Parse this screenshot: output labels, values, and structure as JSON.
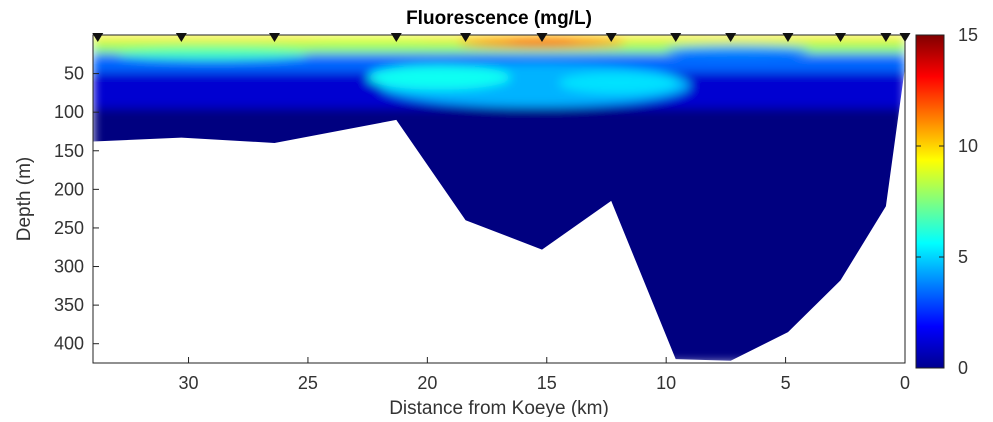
{
  "chart_data": {
    "type": "heatmap",
    "title": "Fluorescence (mg/L)",
    "xlabel": "Distance from Koeye (km)",
    "ylabel": "Depth (m)",
    "x_reversed": true,
    "y_reversed": true,
    "xlim": [
      34,
      0
    ],
    "ylim": [
      0,
      425
    ],
    "xticks": [
      30,
      25,
      20,
      15,
      10,
      5,
      0
    ],
    "yticks": [
      50,
      100,
      150,
      200,
      250,
      300,
      350,
      400
    ],
    "colorbar": {
      "range": [
        0,
        15
      ],
      "ticks": [
        0,
        5,
        10,
        15
      ],
      "colormap": "jet"
    },
    "stations_km": [
      33.8,
      30.3,
      26.4,
      21.3,
      18.4,
      15.2,
      12.3,
      9.6,
      7.3,
      4.9,
      2.7,
      0.8,
      0.0
    ],
    "bottom_profile": {
      "x_km": [
        34.0,
        30.3,
        26.4,
        21.3,
        18.4,
        15.2,
        12.3,
        9.6,
        7.3,
        4.9,
        2.7,
        0.8,
        0.0
      ],
      "depth_m": [
        138,
        133,
        140,
        110,
        240,
        278,
        215,
        420,
        422,
        385,
        318,
        222,
        42
      ]
    },
    "features": [
      {
        "kind": "surface_max",
        "x_km_range": [
          34,
          0
        ],
        "depth_m_range": [
          0,
          20
        ],
        "value_range": [
          8,
          13
        ]
      },
      {
        "kind": "peak",
        "x_km": 15.2,
        "depth_m": 12,
        "value": 12
      },
      {
        "kind": "subsurface_layer",
        "x_km_range": [
          34,
          0
        ],
        "depth_m_range": [
          20,
          60
        ],
        "value_range": [
          3,
          7
        ]
      },
      {
        "kind": "tongue",
        "x_km_range": [
          22,
          9
        ],
        "depth_m_range": [
          40,
          100
        ],
        "value_range": [
          3,
          6
        ]
      },
      {
        "kind": "background",
        "depth_m_range": [
          100,
          425
        ],
        "value": 0
      }
    ]
  },
  "colors": {
    "low": "#00008f",
    "high": "#800000"
  }
}
